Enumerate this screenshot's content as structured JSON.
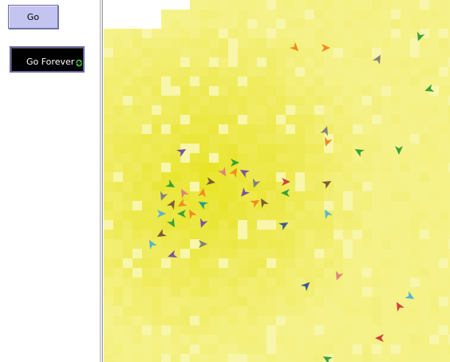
{
  "controls": {
    "go_label": "Go",
    "go_forever_label": "Go Forever"
  },
  "icons": {
    "forever": "forever-loop-icon",
    "turtle": "arrowhead-turtle-icon"
  },
  "world": {
    "patch_colors": {
      "light": "#f4f07c",
      "mid": "#f0ec5a",
      "dark": "#e8e42c",
      "white": "#ffffff"
    },
    "turtle_colors": [
      "#f28a1e",
      "#808080",
      "#3aa03a",
      "#7b52a0",
      "#e08080",
      "#1ea08c",
      "#d04040",
      "#3c5a9a",
      "#7a5a3a",
      "#5ab4d0"
    ]
  }
}
